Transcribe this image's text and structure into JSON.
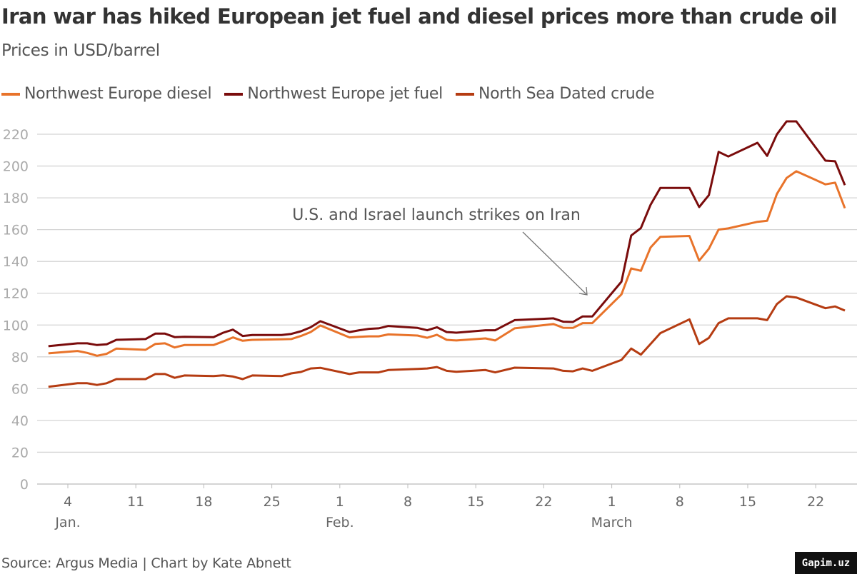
{
  "title": "Iran war has hiked European jet fuel and diesel prices more than crude oil",
  "subtitle": "Prices in USD/barrel",
  "source": "Source: Argus Media | Chart by Kate Abnett",
  "watermark": "Gapim.uz",
  "chart_data": {
    "type": "line",
    "title": "Iran war has hiked European jet fuel and diesel prices more than crude oil",
    "ylabel": "Prices in USD/barrel",
    "ylim": [
      0,
      220
    ],
    "yticks": [
      0,
      20,
      40,
      60,
      80,
      100,
      120,
      140,
      160,
      180,
      200,
      220
    ],
    "grid": true,
    "legend_position": "top-left",
    "xticks": [
      {
        "date": "01-04",
        "label": "4",
        "month": "Jan."
      },
      {
        "date": "01-11",
        "label": "11",
        "month": ""
      },
      {
        "date": "01-18",
        "label": "18",
        "month": ""
      },
      {
        "date": "01-25",
        "label": "25",
        "month": ""
      },
      {
        "date": "02-01",
        "label": "1",
        "month": "Feb."
      },
      {
        "date": "02-08",
        "label": "8",
        "month": ""
      },
      {
        "date": "02-15",
        "label": "15",
        "month": ""
      },
      {
        "date": "02-22",
        "label": "22",
        "month": ""
      },
      {
        "date": "03-01",
        "label": "1",
        "month": "March"
      },
      {
        "date": "03-08",
        "label": "8",
        "month": ""
      },
      {
        "date": "03-15",
        "label": "15",
        "month": ""
      },
      {
        "date": "03-22",
        "label": "22",
        "month": ""
      }
    ],
    "annotation": {
      "text": "U.S. and Israel launch strikes on Iran",
      "date": "02-28"
    },
    "series": [
      {
        "name": "Northwest Europe diesel",
        "color": "#e8732a",
        "points": [
          [
            "01-02",
            82.2
          ],
          [
            "01-05",
            83.7
          ],
          [
            "01-06",
            82.5
          ],
          [
            "01-07",
            80.7
          ],
          [
            "01-08",
            81.9
          ],
          [
            "01-09",
            85.2
          ],
          [
            "01-12",
            84.4
          ],
          [
            "01-13",
            88.1
          ],
          [
            "01-14",
            88.5
          ],
          [
            "01-15",
            85.9
          ],
          [
            "01-16",
            87.4
          ],
          [
            "01-19",
            87.4
          ],
          [
            "01-20",
            89.7
          ],
          [
            "01-21",
            92.2
          ],
          [
            "01-22",
            90.1
          ],
          [
            "01-23",
            90.7
          ],
          [
            "01-26",
            91.0
          ],
          [
            "01-27",
            91.2
          ],
          [
            "01-28",
            93.1
          ],
          [
            "01-29",
            95.6
          ],
          [
            "01-30",
            99.7
          ],
          [
            "02-02",
            92.2
          ],
          [
            "02-03",
            92.6
          ],
          [
            "02-04",
            92.9
          ],
          [
            "02-05",
            92.9
          ],
          [
            "02-06",
            94.1
          ],
          [
            "02-09",
            93.4
          ],
          [
            "02-10",
            92.0
          ],
          [
            "02-11",
            93.9
          ],
          [
            "02-12",
            90.7
          ],
          [
            "02-13",
            90.3
          ],
          [
            "02-16",
            91.6
          ],
          [
            "02-17",
            90.3
          ],
          [
            "02-19",
            97.9
          ],
          [
            "02-23",
            100.6
          ],
          [
            "02-24",
            98.3
          ],
          [
            "02-25",
            98.2
          ],
          [
            "02-26",
            101.2
          ],
          [
            "02-27",
            101.2
          ],
          [
            "03-02",
            119.3
          ],
          [
            "03-03",
            135.6
          ],
          [
            "03-04",
            134.1
          ],
          [
            "03-05",
            148.8
          ],
          [
            "03-06",
            155.5
          ],
          [
            "03-09",
            156.0
          ],
          [
            "03-10",
            140.5
          ],
          [
            "03-11",
            148.0
          ],
          [
            "03-12",
            160.0
          ],
          [
            "03-13",
            160.8
          ],
          [
            "03-16",
            164.9
          ],
          [
            "03-17",
            165.6
          ],
          [
            "03-18",
            182.4
          ],
          [
            "03-19",
            192.5
          ],
          [
            "03-20",
            196.7
          ],
          [
            "03-23",
            188.5
          ],
          [
            "03-24",
            189.5
          ],
          [
            "03-25",
            173.5
          ]
        ]
      },
      {
        "name": "Northwest Europe jet fuel",
        "color": "#7a0c0c",
        "points": [
          [
            "01-02",
            86.7
          ],
          [
            "01-05",
            88.5
          ],
          [
            "01-06",
            88.5
          ],
          [
            "01-07",
            87.4
          ],
          [
            "01-08",
            87.9
          ],
          [
            "01-09",
            90.7
          ],
          [
            "01-12",
            91.2
          ],
          [
            "01-13",
            94.6
          ],
          [
            "01-14",
            94.6
          ],
          [
            "01-15",
            92.4
          ],
          [
            "01-16",
            92.6
          ],
          [
            "01-19",
            92.4
          ],
          [
            "01-20",
            95.2
          ],
          [
            "01-21",
            97.1
          ],
          [
            "01-22",
            93.1
          ],
          [
            "01-23",
            93.7
          ],
          [
            "01-26",
            93.7
          ],
          [
            "01-27",
            94.4
          ],
          [
            "01-28",
            96.1
          ],
          [
            "01-29",
            98.6
          ],
          [
            "01-30",
            102.4
          ],
          [
            "02-02",
            95.6
          ],
          [
            "02-03",
            96.7
          ],
          [
            "02-04",
            97.6
          ],
          [
            "02-05",
            97.9
          ],
          [
            "02-06",
            99.4
          ],
          [
            "02-09",
            98.2
          ],
          [
            "02-10",
            96.7
          ],
          [
            "02-11",
            98.6
          ],
          [
            "02-12",
            95.6
          ],
          [
            "02-13",
            95.2
          ],
          [
            "02-16",
            96.7
          ],
          [
            "02-17",
            96.7
          ],
          [
            "02-19",
            103.1
          ],
          [
            "02-23",
            104.2
          ],
          [
            "02-24",
            102.1
          ],
          [
            "02-25",
            101.9
          ],
          [
            "02-26",
            105.4
          ],
          [
            "02-27",
            105.4
          ],
          [
            "03-02",
            127.3
          ],
          [
            "03-03",
            156.3
          ],
          [
            "03-04",
            161.0
          ],
          [
            "03-05",
            175.7
          ],
          [
            "03-06",
            186.2
          ],
          [
            "03-09",
            186.2
          ],
          [
            "03-10",
            174.2
          ],
          [
            "03-11",
            181.7
          ],
          [
            "03-12",
            208.9
          ],
          [
            "03-13",
            206.0
          ],
          [
            "03-16",
            214.6
          ],
          [
            "03-17",
            206.4
          ],
          [
            "03-18",
            219.9
          ],
          [
            "03-19",
            228.1
          ],
          [
            "03-20",
            228.1
          ],
          [
            "03-23",
            203.4
          ],
          [
            "03-24",
            203.0
          ],
          [
            "03-25",
            188.0
          ]
        ]
      },
      {
        "name": "North Sea Dated crude",
        "color": "#b53c12",
        "points": [
          [
            "01-02",
            61.2
          ],
          [
            "01-05",
            63.4
          ],
          [
            "01-06",
            63.4
          ],
          [
            "01-07",
            62.3
          ],
          [
            "01-08",
            63.4
          ],
          [
            "01-09",
            66.0
          ],
          [
            "01-12",
            66.0
          ],
          [
            "01-13",
            69.2
          ],
          [
            "01-14",
            69.2
          ],
          [
            "01-15",
            66.8
          ],
          [
            "01-16",
            68.3
          ],
          [
            "01-19",
            67.9
          ],
          [
            "01-20",
            68.4
          ],
          [
            "01-21",
            67.6
          ],
          [
            "01-22",
            66.0
          ],
          [
            "01-23",
            68.3
          ],
          [
            "01-26",
            67.9
          ],
          [
            "01-27",
            69.6
          ],
          [
            "01-28",
            70.5
          ],
          [
            "01-29",
            72.7
          ],
          [
            "01-30",
            73.1
          ],
          [
            "02-02",
            69.2
          ],
          [
            "02-03",
            70.2
          ],
          [
            "02-04",
            70.2
          ],
          [
            "02-05",
            70.2
          ],
          [
            "02-06",
            71.7
          ],
          [
            "02-09",
            72.4
          ],
          [
            "02-10",
            72.7
          ],
          [
            "02-11",
            73.6
          ],
          [
            "02-12",
            71.2
          ],
          [
            "02-13",
            70.6
          ],
          [
            "02-16",
            71.7
          ],
          [
            "02-17",
            70.2
          ],
          [
            "02-19",
            73.2
          ],
          [
            "02-23",
            72.7
          ],
          [
            "02-24",
            71.2
          ],
          [
            "02-25",
            70.9
          ],
          [
            "02-26",
            72.7
          ],
          [
            "02-27",
            71.2
          ],
          [
            "03-02",
            78.1
          ],
          [
            "03-03",
            85.2
          ],
          [
            "03-04",
            81.4
          ],
          [
            "03-05",
            88.1
          ],
          [
            "03-06",
            94.9
          ],
          [
            "03-09",
            103.6
          ],
          [
            "03-10",
            88.1
          ],
          [
            "03-11",
            91.9
          ],
          [
            "03-12",
            101.2
          ],
          [
            "03-13",
            104.2
          ],
          [
            "03-16",
            104.2
          ],
          [
            "03-17",
            103.1
          ],
          [
            "03-18",
            113.2
          ],
          [
            "03-19",
            118.1
          ],
          [
            "03-20",
            117.3
          ],
          [
            "03-23",
            110.6
          ],
          [
            "03-24",
            111.7
          ],
          [
            "03-25",
            109.1
          ]
        ]
      }
    ]
  }
}
